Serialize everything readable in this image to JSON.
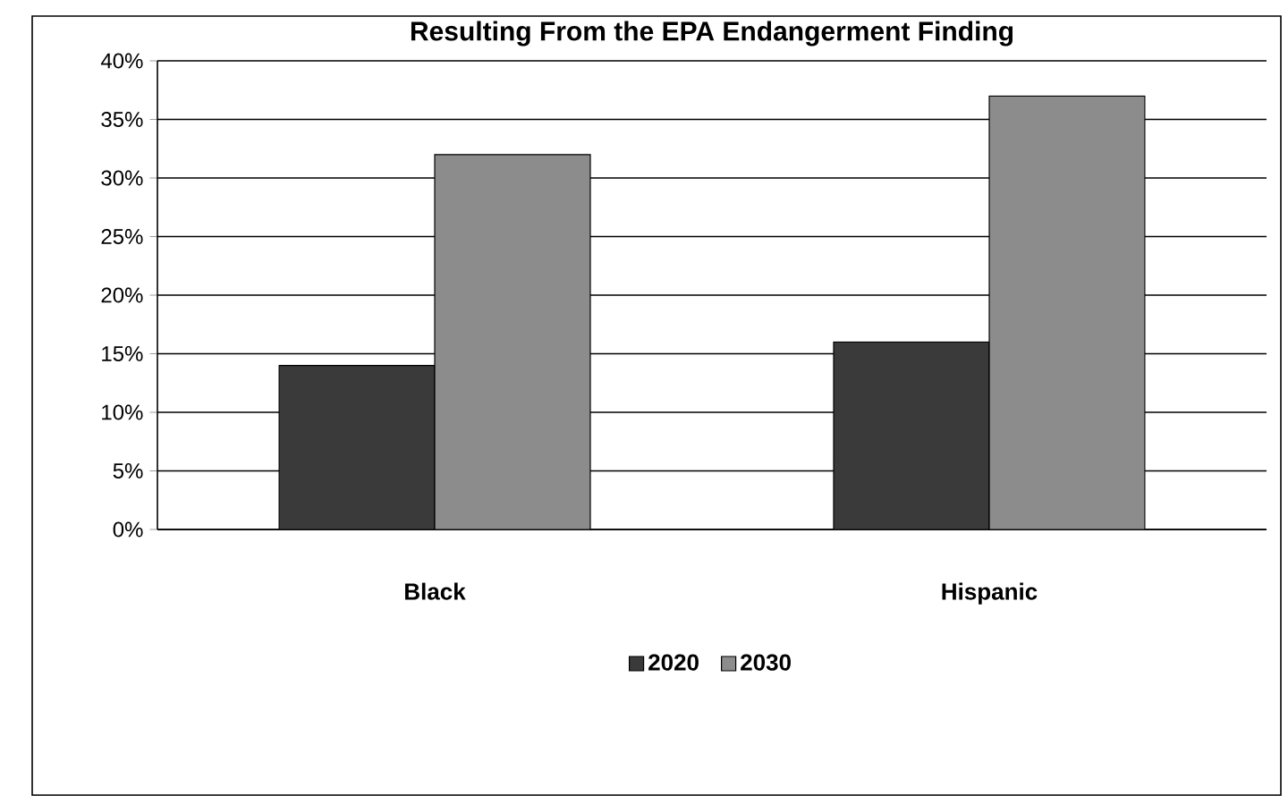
{
  "chart_data": {
    "type": "bar",
    "title": "Resulting From the EPA Endangerment Finding",
    "categories": [
      "Black",
      "Hispanic"
    ],
    "series": [
      {
        "name": "2020",
        "color": "#3a3a3a",
        "values": [
          14,
          16
        ]
      },
      {
        "name": "2030",
        "color": "#8c8c8c",
        "values": [
          32,
          37
        ]
      }
    ],
    "ylim": [
      0,
      40
    ],
    "yticks": [
      {
        "value": 0,
        "label": "0%"
      },
      {
        "value": 5,
        "label": "5%"
      },
      {
        "value": 10,
        "label": "10%"
      },
      {
        "value": 15,
        "label": "15%"
      },
      {
        "value": 20,
        "label": "20%"
      },
      {
        "value": 25,
        "label": "25%"
      },
      {
        "value": 30,
        "label": "30%"
      },
      {
        "value": 35,
        "label": "35%"
      },
      {
        "value": 40,
        "label": "40%"
      }
    ],
    "grid": "y",
    "legend": "bottom"
  }
}
